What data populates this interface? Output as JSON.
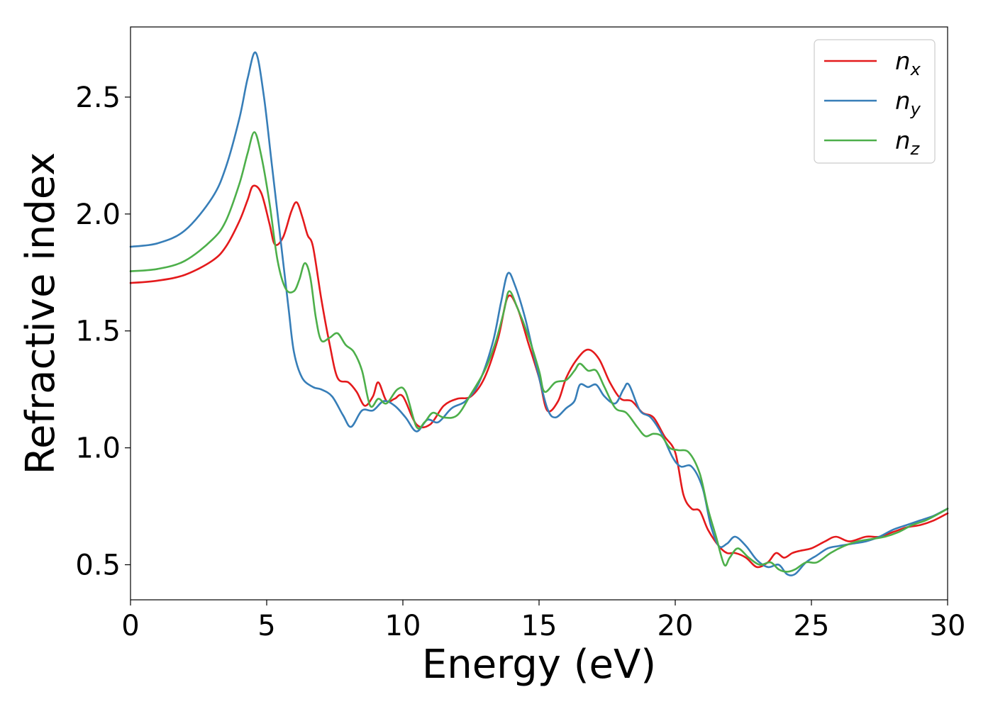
{
  "chart_data": {
    "type": "line",
    "title": "",
    "xlabel": "Energy (eV)",
    "ylabel": "Refractive index",
    "xlim": [
      0,
      30
    ],
    "ylim": [
      0.35,
      2.8
    ],
    "xticks": [
      0,
      5,
      10,
      15,
      20,
      25,
      30
    ],
    "yticks": [
      0.5,
      1.0,
      1.5,
      2.0,
      2.5
    ],
    "xtick_labels": [
      "0",
      "5",
      "10",
      "15",
      "20",
      "25",
      "30"
    ],
    "ytick_labels": [
      "0.5",
      "1.0",
      "1.5",
      "2.0",
      "2.5"
    ],
    "grid": false,
    "legend_position": "top-right",
    "series": [
      {
        "name": "n",
        "subscript": "x",
        "color": "#e41a1c",
        "x": [
          0,
          1,
          2,
          3,
          3.5,
          4,
          4.3,
          4.5,
          4.8,
          5.1,
          5.3,
          5.6,
          5.9,
          6.1,
          6.3,
          6.5,
          6.7,
          7.0,
          7.3,
          7.6,
          8.0,
          8.3,
          8.6,
          8.9,
          9.1,
          9.4,
          9.7,
          10.0,
          10.5,
          11.0,
          11.5,
          12.0,
          12.5,
          13.0,
          13.5,
          13.85,
          14.2,
          14.6,
          15.0,
          15.3,
          15.7,
          16.0,
          16.4,
          16.8,
          17.2,
          17.6,
          18.0,
          18.4,
          18.8,
          19.2,
          19.6,
          20.0,
          20.3,
          20.6,
          20.9,
          21.2,
          21.6,
          21.9,
          22.2,
          22.6,
          23.0,
          23.4,
          23.7,
          24.0,
          24.3,
          24.6,
          25.0,
          25.5,
          25.9,
          26.4,
          27.0,
          27.5,
          28.0,
          28.5,
          29.0,
          29.5,
          30.0
        ],
        "y": [
          1.705,
          1.715,
          1.74,
          1.8,
          1.86,
          1.97,
          2.06,
          2.12,
          2.09,
          1.96,
          1.87,
          1.9,
          2.01,
          2.05,
          1.99,
          1.91,
          1.86,
          1.64,
          1.45,
          1.3,
          1.28,
          1.24,
          1.18,
          1.22,
          1.28,
          1.2,
          1.21,
          1.22,
          1.1,
          1.1,
          1.18,
          1.21,
          1.22,
          1.3,
          1.47,
          1.645,
          1.6,
          1.45,
          1.3,
          1.16,
          1.2,
          1.3,
          1.38,
          1.42,
          1.38,
          1.28,
          1.21,
          1.2,
          1.15,
          1.13,
          1.05,
          0.98,
          0.8,
          0.74,
          0.73,
          0.65,
          0.58,
          0.55,
          0.55,
          0.53,
          0.49,
          0.51,
          0.55,
          0.53,
          0.55,
          0.56,
          0.57,
          0.6,
          0.62,
          0.6,
          0.62,
          0.62,
          0.64,
          0.66,
          0.67,
          0.69,
          0.72
        ]
      },
      {
        "name": "n",
        "subscript": "y",
        "color": "#377eb8",
        "x": [
          0,
          1,
          2,
          3,
          3.5,
          4,
          4.3,
          4.6,
          4.9,
          5.2,
          5.5,
          5.8,
          6.0,
          6.3,
          6.7,
          7.0,
          7.4,
          7.8,
          8.1,
          8.5,
          8.9,
          9.3,
          9.7,
          10.1,
          10.5,
          10.9,
          11.3,
          11.8,
          12.3,
          12.8,
          13.3,
          13.6,
          13.85,
          14.1,
          14.5,
          14.9,
          15.3,
          15.6,
          16.0,
          16.3,
          16.5,
          16.8,
          17.1,
          17.4,
          17.8,
          18.1,
          18.3,
          18.7,
          19.1,
          19.5,
          19.9,
          20.2,
          20.6,
          21.0,
          21.3,
          21.6,
          21.9,
          22.2,
          22.6,
          23.0,
          23.4,
          23.8,
          24.1,
          24.4,
          24.8,
          25.2,
          25.6,
          26.0,
          26.5,
          27.0,
          27.5,
          28.0,
          28.5,
          29.0,
          29.5,
          30.0
        ],
        "y": [
          1.86,
          1.875,
          1.93,
          2.07,
          2.2,
          2.41,
          2.58,
          2.69,
          2.5,
          2.2,
          1.9,
          1.6,
          1.41,
          1.3,
          1.26,
          1.25,
          1.22,
          1.14,
          1.09,
          1.16,
          1.16,
          1.2,
          1.18,
          1.13,
          1.07,
          1.12,
          1.11,
          1.17,
          1.2,
          1.28,
          1.45,
          1.62,
          1.745,
          1.7,
          1.55,
          1.35,
          1.17,
          1.13,
          1.17,
          1.2,
          1.27,
          1.26,
          1.27,
          1.22,
          1.19,
          1.25,
          1.27,
          1.16,
          1.13,
          1.06,
          0.96,
          0.92,
          0.92,
          0.83,
          0.67,
          0.58,
          0.59,
          0.62,
          0.58,
          0.52,
          0.49,
          0.5,
          0.46,
          0.46,
          0.51,
          0.54,
          0.57,
          0.58,
          0.59,
          0.6,
          0.62,
          0.65,
          0.67,
          0.69,
          0.71,
          0.74
        ]
      },
      {
        "name": "n",
        "subscript": "z",
        "color": "#4daf4a",
        "x": [
          0,
          1,
          2,
          3,
          3.5,
          4,
          4.3,
          4.55,
          4.8,
          5.1,
          5.4,
          5.7,
          6.0,
          6.2,
          6.4,
          6.6,
          6.8,
          7.0,
          7.3,
          7.6,
          7.9,
          8.2,
          8.5,
          8.8,
          9.1,
          9.4,
          9.8,
          10.1,
          10.5,
          10.8,
          11.1,
          11.5,
          12.0,
          12.5,
          13.0,
          13.4,
          13.7,
          13.9,
          14.2,
          14.6,
          15.0,
          15.2,
          15.6,
          16.0,
          16.3,
          16.5,
          16.8,
          17.1,
          17.4,
          17.8,
          18.2,
          18.6,
          18.9,
          19.2,
          19.5,
          19.8,
          20.1,
          20.5,
          20.9,
          21.2,
          21.5,
          21.8,
          22.0,
          22.3,
          22.7,
          23.1,
          23.5,
          23.8,
          24.1,
          24.4,
          24.8,
          25.2,
          25.7,
          26.2,
          26.7,
          27.2,
          27.7,
          28.2,
          28.7,
          29.2,
          29.7,
          30.0
        ],
        "y": [
          1.755,
          1.765,
          1.8,
          1.89,
          1.97,
          2.13,
          2.26,
          2.35,
          2.25,
          2.05,
          1.8,
          1.68,
          1.67,
          1.72,
          1.79,
          1.73,
          1.56,
          1.46,
          1.47,
          1.49,
          1.44,
          1.41,
          1.33,
          1.18,
          1.21,
          1.19,
          1.25,
          1.24,
          1.09,
          1.11,
          1.15,
          1.13,
          1.14,
          1.23,
          1.33,
          1.45,
          1.58,
          1.67,
          1.6,
          1.48,
          1.33,
          1.24,
          1.28,
          1.29,
          1.33,
          1.36,
          1.33,
          1.33,
          1.26,
          1.17,
          1.15,
          1.09,
          1.05,
          1.06,
          1.05,
          1.0,
          0.99,
          0.98,
          0.89,
          0.74,
          0.62,
          0.5,
          0.53,
          0.57,
          0.53,
          0.5,
          0.51,
          0.48,
          0.47,
          0.48,
          0.51,
          0.51,
          0.55,
          0.58,
          0.6,
          0.61,
          0.62,
          0.64,
          0.67,
          0.69,
          0.72,
          0.74
        ]
      }
    ]
  }
}
